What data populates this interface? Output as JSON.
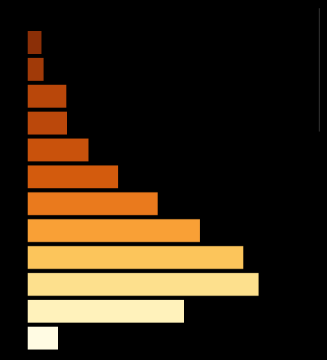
{
  "chart_data": {
    "type": "bar",
    "orientation": "horizontal",
    "title": "",
    "xlabel": "",
    "ylabel": "",
    "grid": false,
    "legend": "none",
    "xlim": [
      0,
      340
    ],
    "values": [
      20,
      23,
      56,
      57,
      88,
      131,
      188,
      249,
      312,
      334,
      226,
      44
    ],
    "colors": [
      "#8b2f07",
      "#a13a08",
      "#b9470a",
      "#bb480b",
      "#c9520c",
      "#d35b0d",
      "#ea7a1d",
      "#f9a036",
      "#fcc55b",
      "#fde08d",
      "#fff2bb",
      "#fffbe3"
    ]
  }
}
